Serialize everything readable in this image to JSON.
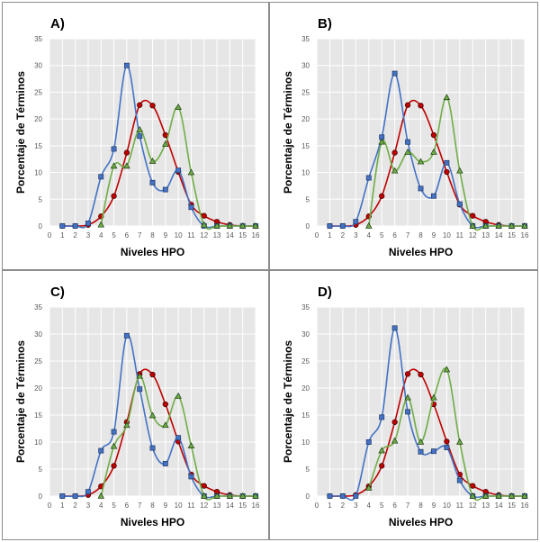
{
  "chart_data": [
    {
      "type": "line",
      "panel_label": "A)",
      "xlabel": "Niveles HPO",
      "ylabel": "Porcentaje de Términos",
      "xlim": [
        0,
        16
      ],
      "ylim": [
        0,
        35
      ],
      "xticks": [
        0,
        1,
        2,
        3,
        4,
        5,
        6,
        7,
        8,
        9,
        10,
        11,
        12,
        13,
        14,
        15,
        16
      ],
      "yticks": [
        0,
        5,
        10,
        15,
        20,
        25,
        30,
        35
      ],
      "grid": true,
      "series": [
        {
          "color": "#4472c4",
          "marker": "square",
          "x": [
            1,
            2,
            3,
            4,
            5,
            6,
            7,
            8,
            9,
            10,
            11,
            12,
            13,
            14,
            15,
            16
          ],
          "values": [
            0,
            0,
            0.5,
            9.2,
            14.4,
            30,
            16.8,
            8.1,
            6.8,
            10.4,
            3.5,
            0,
            0,
            0,
            0,
            0
          ]
        },
        {
          "color": "#c00000",
          "marker": "circle",
          "x": [
            1,
            2,
            3,
            4,
            5,
            6,
            7,
            8,
            9,
            10,
            11,
            12,
            13,
            14,
            15,
            16
          ],
          "values": [
            0,
            0,
            0.2,
            1.8,
            5.6,
            13.7,
            22.6,
            22.5,
            17,
            10.1,
            4,
            1.9,
            0.8,
            0.2,
            0,
            0
          ]
        },
        {
          "color": "#70ad47",
          "marker": "triangle",
          "x": [
            4,
            5,
            6,
            7,
            8,
            9,
            10,
            11,
            12,
            13,
            14,
            15,
            16
          ],
          "values": [
            0.2,
            11.2,
            11.2,
            18,
            12.1,
            15.3,
            22.2,
            10,
            0.2,
            0,
            0,
            0,
            0
          ]
        }
      ]
    },
    {
      "type": "line",
      "panel_label": "B)",
      "xlabel": "Niveles HPO",
      "ylabel": "Porcentaje de Términos",
      "xlim": [
        0,
        16
      ],
      "ylim": [
        0,
        35
      ],
      "xticks": [
        0,
        1,
        2,
        3,
        4,
        5,
        6,
        7,
        8,
        9,
        10,
        11,
        12,
        13,
        14,
        15,
        16
      ],
      "yticks": [
        0,
        5,
        10,
        15,
        20,
        25,
        30,
        35
      ],
      "grid": true,
      "series": [
        {
          "color": "#4472c4",
          "marker": "square",
          "x": [
            1,
            2,
            3,
            4,
            5,
            6,
            7,
            8,
            9,
            10,
            11,
            12,
            13,
            14,
            15,
            16
          ],
          "values": [
            0,
            0,
            0.8,
            9,
            16.6,
            28.5,
            15.7,
            7,
            5.6,
            11.8,
            4.1,
            0,
            0,
            0,
            0,
            0
          ]
        },
        {
          "color": "#c00000",
          "marker": "circle",
          "x": [
            1,
            2,
            3,
            4,
            5,
            6,
            7,
            8,
            9,
            10,
            11,
            12,
            13,
            14,
            15,
            16
          ],
          "values": [
            0,
            0,
            0.2,
            1.8,
            5.6,
            13.7,
            22.6,
            22.5,
            17,
            10.1,
            4,
            1.9,
            0.8,
            0.2,
            0,
            0
          ]
        },
        {
          "color": "#70ad47",
          "marker": "triangle",
          "x": [
            4,
            5,
            6,
            7,
            8,
            9,
            10,
            11,
            12,
            13,
            14,
            15,
            16
          ],
          "values": [
            0,
            15.7,
            10.3,
            13.8,
            12,
            13.8,
            24,
            10.3,
            0,
            0,
            0,
            0,
            0
          ]
        }
      ]
    },
    {
      "type": "line",
      "panel_label": "C)",
      "xlabel": "Niveles HPO",
      "ylabel": "Porcentaje de Términos",
      "xlim": [
        0,
        16
      ],
      "ylim": [
        0,
        35
      ],
      "xticks": [
        0,
        1,
        2,
        3,
        4,
        5,
        6,
        7,
        8,
        9,
        10,
        11,
        12,
        13,
        14,
        15,
        16
      ],
      "yticks": [
        0,
        5,
        10,
        15,
        20,
        25,
        30,
        35
      ],
      "grid": true,
      "series": [
        {
          "color": "#4472c4",
          "marker": "square",
          "x": [
            1,
            2,
            3,
            4,
            5,
            6,
            7,
            8,
            9,
            10,
            11,
            12,
            13,
            14,
            15,
            16
          ],
          "values": [
            0,
            0,
            0.8,
            8.4,
            11.9,
            29.7,
            19.8,
            8.9,
            6,
            10.8,
            3.6,
            0,
            0,
            0,
            0,
            0
          ]
        },
        {
          "color": "#c00000",
          "marker": "circle",
          "x": [
            1,
            2,
            3,
            4,
            5,
            6,
            7,
            8,
            9,
            10,
            11,
            12,
            13,
            14,
            15,
            16
          ],
          "values": [
            0,
            0,
            0.2,
            1.8,
            5.6,
            13.7,
            22.6,
            22.5,
            17,
            10.1,
            4,
            1.9,
            0.8,
            0.2,
            0,
            0
          ]
        },
        {
          "color": "#70ad47",
          "marker": "triangle",
          "x": [
            4,
            5,
            6,
            7,
            8,
            9,
            10,
            11,
            12,
            13,
            14,
            15,
            16
          ],
          "values": [
            0,
            9.2,
            13.1,
            22.2,
            14.9,
            13.1,
            18.5,
            9.3,
            0,
            0,
            0,
            0,
            0
          ]
        }
      ]
    },
    {
      "type": "line",
      "panel_label": "D)",
      "xlabel": "Niveles HPO",
      "ylabel": "Porcentaje de Términos",
      "xlim": [
        0,
        16
      ],
      "ylim": [
        0,
        35
      ],
      "xticks": [
        0,
        1,
        2,
        3,
        4,
        5,
        6,
        7,
        8,
        9,
        10,
        11,
        12,
        13,
        14,
        15,
        16
      ],
      "yticks": [
        0,
        5,
        10,
        15,
        20,
        25,
        30,
        35
      ],
      "grid": true,
      "series": [
        {
          "color": "#4472c4",
          "marker": "square",
          "x": [
            1,
            2,
            3,
            4,
            5,
            6,
            7,
            8,
            9,
            10,
            11,
            12,
            13,
            14,
            15,
            16
          ],
          "values": [
            0,
            0,
            0,
            10,
            14.6,
            31.1,
            15.6,
            8.2,
            8.3,
            9,
            2.9,
            0,
            0,
            0,
            0,
            0
          ]
        },
        {
          "color": "#c00000",
          "marker": "circle",
          "x": [
            1,
            2,
            3,
            4,
            5,
            6,
            7,
            8,
            9,
            10,
            11,
            12,
            13,
            14,
            15,
            16
          ],
          "values": [
            0,
            0,
            0.2,
            1.8,
            5.6,
            13.7,
            22.6,
            22.5,
            17,
            10.1,
            4,
            1.9,
            0.8,
            0.2,
            0,
            0
          ]
        },
        {
          "color": "#70ad47",
          "marker": "triangle",
          "x": [
            4,
            5,
            6,
            7,
            8,
            9,
            10,
            11,
            12,
            13,
            14,
            15,
            16
          ],
          "values": [
            1.5,
            8.4,
            10.2,
            18.2,
            10,
            18.2,
            23.4,
            10,
            0,
            0,
            0,
            0,
            0
          ]
        }
      ]
    }
  ]
}
